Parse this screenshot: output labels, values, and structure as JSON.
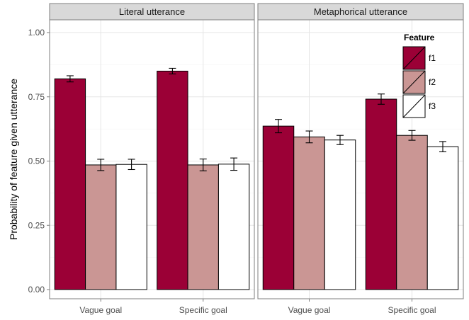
{
  "chart_data": {
    "type": "bar",
    "ylabel": "Probability of feature given utterance",
    "xlabel": "",
    "ylim": [
      0,
      1.05
    ],
    "yticks": [
      0.0,
      0.25,
      0.5,
      0.75,
      1.0
    ],
    "ytick_labels": [
      "0.00",
      "0.25",
      "0.50",
      "0.75",
      "1.00"
    ],
    "categories": [
      "Vague goal",
      "Specific goal"
    ],
    "grid": true,
    "legend": {
      "title": "Feature",
      "position": "top-right",
      "entries": [
        "f1",
        "f2",
        "f3"
      ],
      "colors": [
        "#9b0036",
        "#ca9694",
        "#ffffff"
      ]
    },
    "panels": [
      {
        "title": "Literal utterance",
        "series": [
          {
            "name": "f1",
            "values": [
              0.82,
              0.85
            ],
            "errors": [
              0.012,
              0.011
            ]
          },
          {
            "name": "f2",
            "values": [
              0.485,
              0.485
            ],
            "errors": [
              0.022,
              0.023
            ]
          },
          {
            "name": "f3",
            "values": [
              0.487,
              0.488
            ],
            "errors": [
              0.02,
              0.024
            ]
          }
        ]
      },
      {
        "title": "Metaphorical utterance",
        "series": [
          {
            "name": "f1",
            "values": [
              0.636,
              0.741
            ],
            "errors": [
              0.026,
              0.02
            ]
          },
          {
            "name": "f2",
            "values": [
              0.594,
              0.6
            ],
            "errors": [
              0.023,
              0.019
            ]
          },
          {
            "name": "f3",
            "values": [
              0.582,
              0.556
            ],
            "errors": [
              0.018,
              0.02
            ]
          }
        ]
      }
    ]
  }
}
